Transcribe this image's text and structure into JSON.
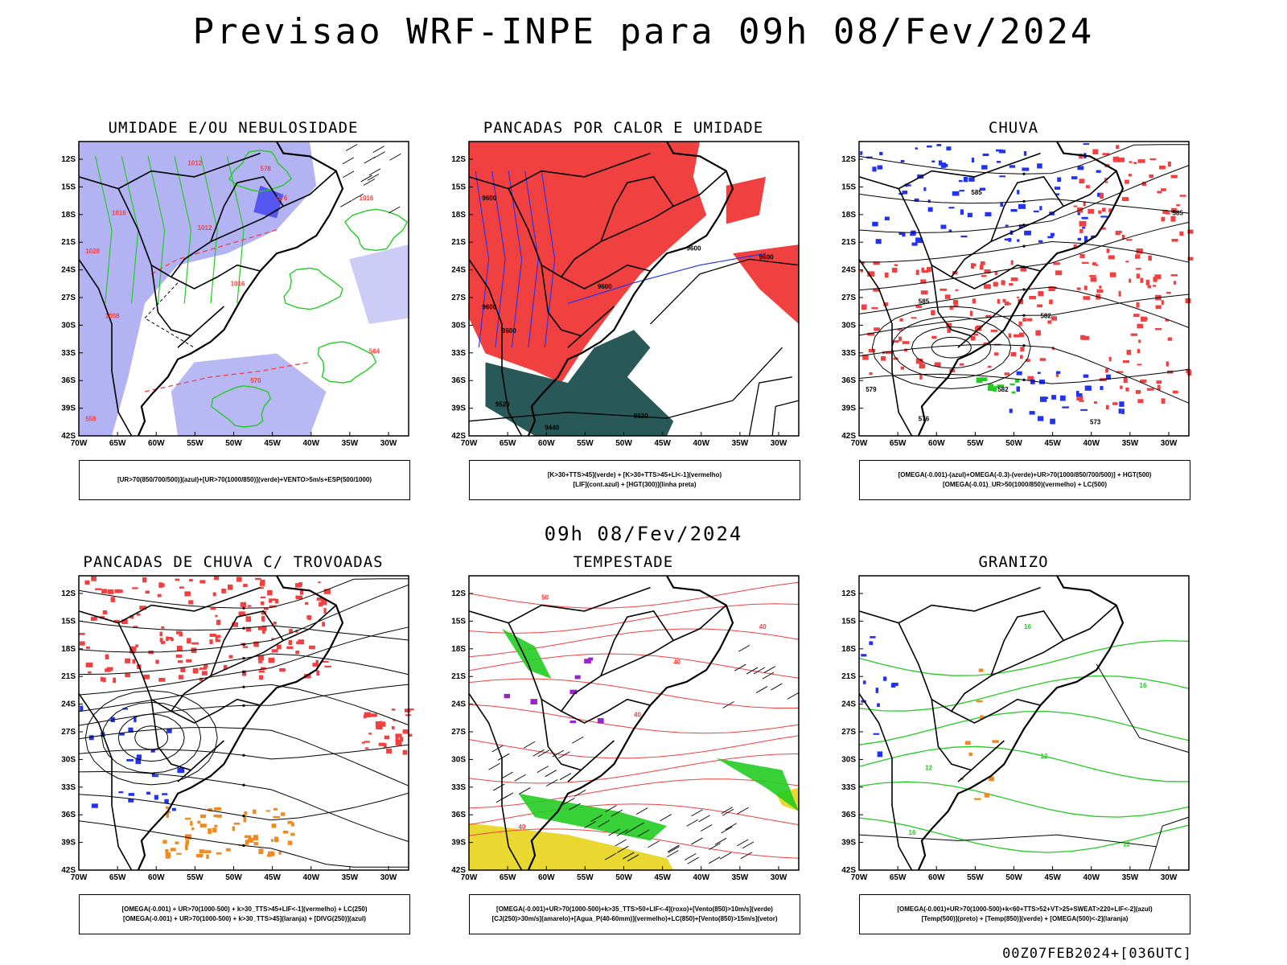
{
  "header": {
    "title": "Previsao WRF-INPE  para 09h 08/Fev/2024"
  },
  "middle_title": "09h 08/Fev/2024",
  "footer_stamp": "00Z07FEB2024+[036UTC]",
  "axes": {
    "lat_ticks": [
      "12S",
      "15S",
      "18S",
      "21S",
      "24S",
      "27S",
      "30S",
      "33S",
      "36S",
      "39S",
      "42S"
    ],
    "lon_ticks": [
      "70W",
      "65W",
      "60W",
      "55W",
      "50W",
      "45W",
      "40W",
      "35W",
      "30W"
    ]
  },
  "panels": [
    {
      "title": "UMIDADE E/OU NEBULOSIDADE",
      "legend": [
        "[UR>70(850/700/500)](azul)+[UR>70(1000/850)](verde)+VENTO>5m/s+ESP(500/1000)"
      ],
      "labels": [
        "1012",
        "1012",
        "1016",
        "1016",
        "1016",
        "1008",
        "1020",
        "578",
        "576",
        "570",
        "564",
        "558"
      ]
    },
    {
      "title": "PANCADAS POR CALOR E UMIDADE",
      "legend": [
        "[K>30+TTS>45](verde) + [K>30+TTS>45+LI<-1](vermelho)",
        "[LIF](cont.azul) + [HGT(300)](linha preta)"
      ],
      "labels": [
        "9600",
        "9600",
        "9600",
        "9600",
        "9520",
        "9520",
        "9440",
        "9600",
        "9600"
      ]
    },
    {
      "title": "CHUVA",
      "legend": [
        "[OMEGA(-0.001)-(azul)+OMEGA(-0.3)-(verde)+UR>70(1000/850/700/500)] + HGT(500)",
        "[OMEGA(-0.01)_UR>50(1000/850)(vermelho) + LC(500)"
      ],
      "labels": [
        "585",
        "585",
        "582",
        "582",
        "579",
        "576",
        "573",
        "585"
      ]
    },
    {
      "title": "PANCADAS DE CHUVA C/ TROVOADAS",
      "legend": [
        "[OMEGA(-0.001) + UR>70(1000-500) + k>30_TTS>45+LIF<-1](vermelho) + LC(250)",
        "[OMEGA(-0.001) + UR>70(1000-500) + k>30_TTS>45](laranja) + [DIVG(250)](azul)"
      ],
      "labels": []
    },
    {
      "title": "TEMPESTADE",
      "legend": [
        "[OMEGA(-0.001)+UR>70(1000-500)+k>35_TTS>50+LIF<-4](roxo)+[Vento(850)>10m/s](verde)",
        "[CJ(250)>30m/s](amarelo)+[Agua_P(40-60mm)](vermelho)+LC(850)+[Vento(850)>15m/s](vetor)"
      ],
      "labels": [
        "50",
        "40",
        "40",
        "40",
        "40"
      ]
    },
    {
      "title": "GRANIZO",
      "legend": [
        "[OMEGA(-0.001)+UR>70(1000-500)+k<60+TTS>52+VT>25+SWEAT>220+LIF<-2](azul)",
        "[Temp(500)](preto) + [Temp(850)](verde) + [OMEGA(500)<-2](laranja)"
      ],
      "labels": [
        "16",
        "16",
        "12",
        "12",
        "16",
        "12"
      ]
    }
  ],
  "colors": {
    "blue_humidity": "#9a9af0",
    "green": "#22cc22",
    "red": "#f04040",
    "dark_teal": "#1e4f4f",
    "blue": "#2233ee",
    "orange": "#f08a20",
    "yellow": "#e8d830",
    "purple": "#9922cc"
  }
}
